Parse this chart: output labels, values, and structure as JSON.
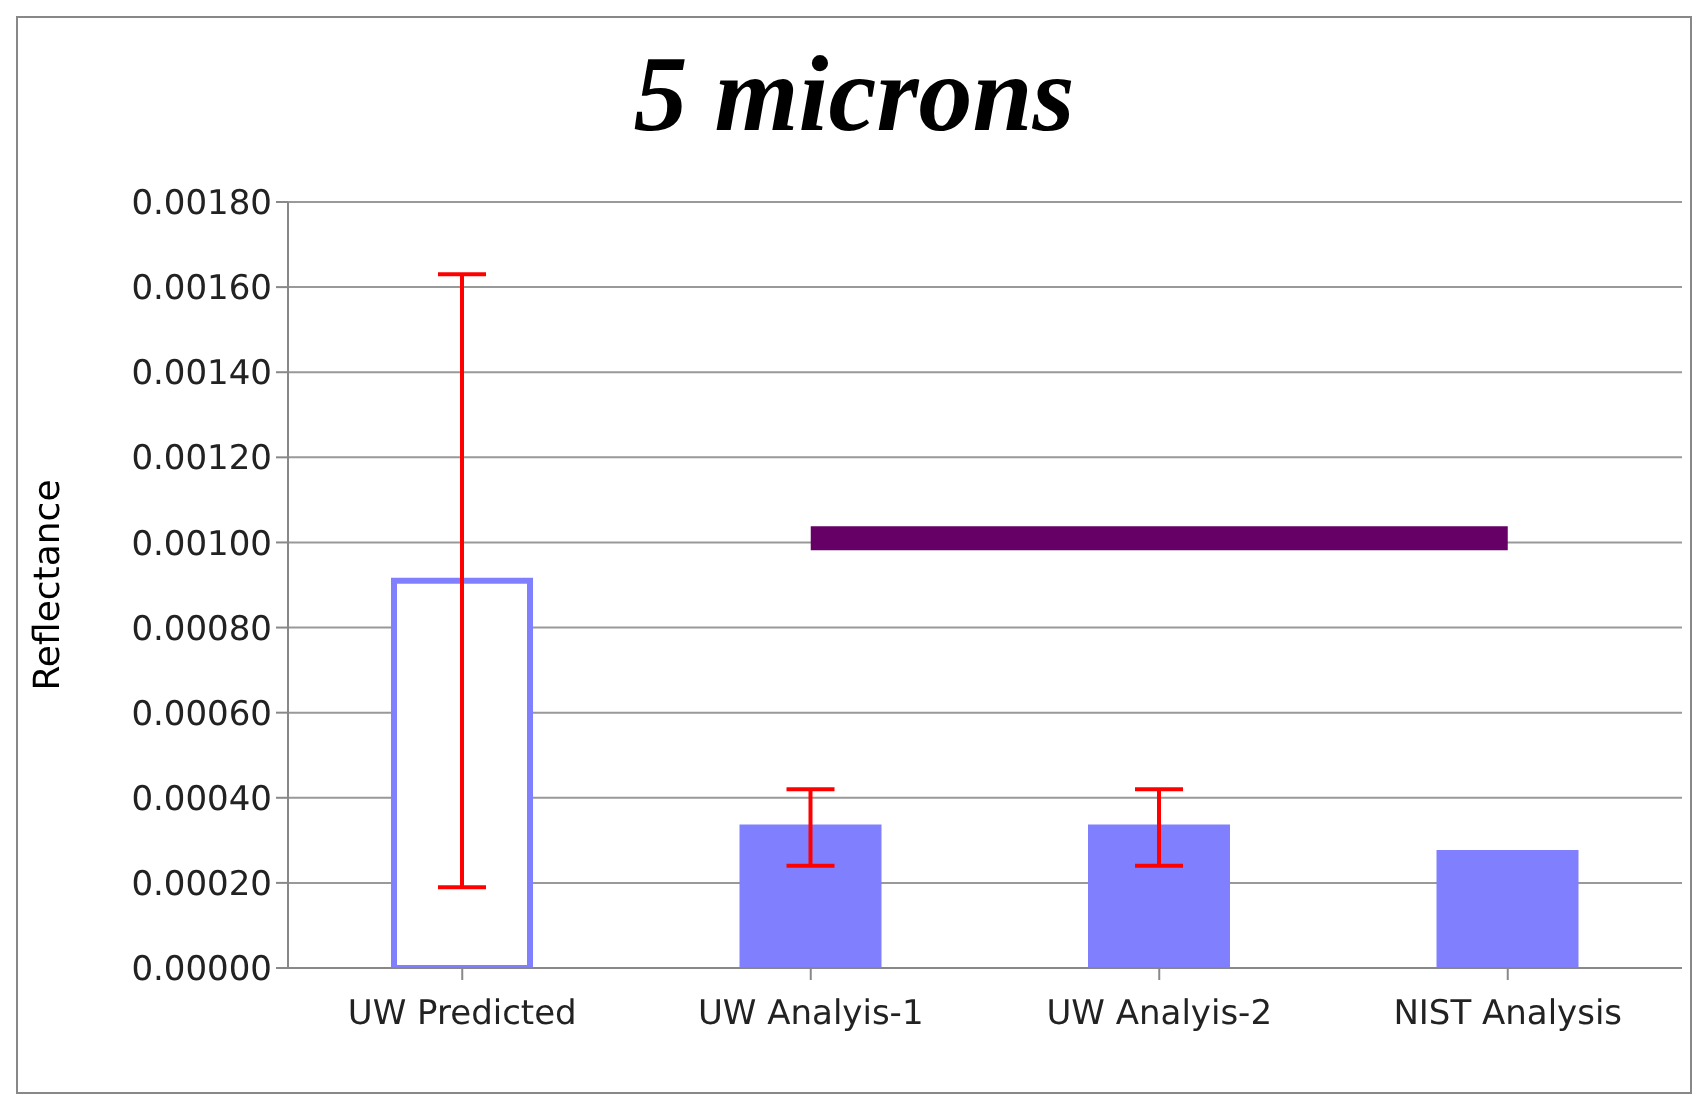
{
  "chart_data": {
    "type": "bar",
    "title": "5 microns",
    "ylabel": "Reflectance",
    "categories": [
      "UW Predicted",
      "UW Analyis-1",
      "UW Analyis-2",
      "NIST Analysis"
    ],
    "series": [
      {
        "color": "#8080ff",
        "colors": [
          "#ffffff",
          "#8080ff",
          "#8080ff",
          "#8080ff"
        ],
        "values": [
          0.00091,
          0.00033,
          0.00033,
          0.00027
        ],
        "errors": [
          0.00072,
          9e-05,
          9e-05,
          null
        ]
      },
      {
        "type": "line",
        "color": "#660066",
        "values": [
          null,
          0.00101,
          0.00101,
          0.00101
        ]
      }
    ],
    "ylim": [
      0,
      0.0018
    ],
    "yticks": [
      {
        "value": 0,
        "label": "0.00000"
      },
      {
        "value": 0.0002,
        "label": "0.00020"
      },
      {
        "value": 0.0004,
        "label": "0.00040"
      },
      {
        "value": 0.0006,
        "label": "0.00060"
      },
      {
        "value": 0.0008,
        "label": "0.00080"
      },
      {
        "value": 0.001,
        "label": "0.00100"
      },
      {
        "value": 0.0012,
        "label": "0.00120"
      },
      {
        "value": 0.0014,
        "label": "0.00140"
      },
      {
        "value": 0.0016,
        "label": "0.00160"
      },
      {
        "value": 0.0018,
        "label": "0.00180"
      }
    ],
    "grid": "y"
  }
}
